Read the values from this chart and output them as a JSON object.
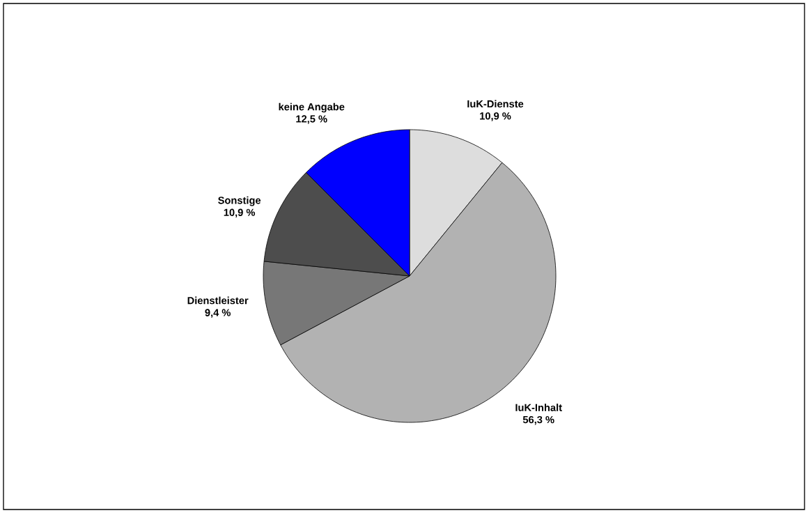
{
  "chart_data": {
    "type": "pie",
    "categories": [
      "IuK-Dienste",
      "IuK-Inhalt",
      "Dienstleister",
      "Sonstige",
      "keine Angabe"
    ],
    "values": [
      10.9,
      56.3,
      9.4,
      10.9,
      12.5
    ],
    "value_labels": [
      "10,9 %",
      "56,3 %",
      "9,4 %",
      "10,9 %",
      "12,5 %"
    ],
    "colors": [
      "#dddddd",
      "#b2b2b2",
      "#777777",
      "#4d4d4d",
      "#0000ff"
    ]
  }
}
